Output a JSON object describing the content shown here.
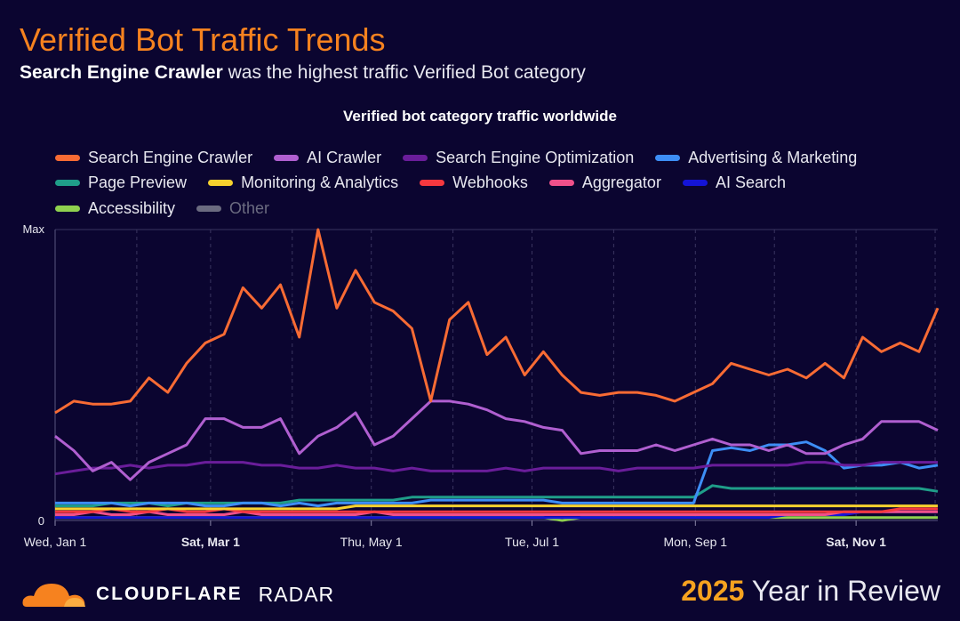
{
  "header": {
    "title": "Verified Bot Traffic Trends",
    "subtitle_bold": "Search Engine Crawler",
    "subtitle_rest": " was the highest traffic Verified Bot category"
  },
  "footer": {
    "brand": "CLOUDFLARE",
    "product": "RADAR",
    "year": "2025",
    "review": " Year in Review"
  },
  "chart_data": {
    "type": "line",
    "title": "Verified bot category traffic worldwide",
    "ylabel": "",
    "xlabel": "",
    "ylim": [
      0,
      100
    ],
    "ytick_labels": [
      "0",
      "Max"
    ],
    "xtick_labels": [
      {
        "label": "Wed, Jan 1",
        "day": 0,
        "bold": false
      },
      {
        "label": "Sat, Mar 1",
        "day": 59,
        "bold": true
      },
      {
        "label": "Thu, May 1",
        "day": 120,
        "bold": false
      },
      {
        "label": "Tue, Jul 1",
        "day": 181,
        "bold": false
      },
      {
        "label": "Mon, Sep 1",
        "day": 243,
        "bold": false
      },
      {
        "label": "Sat, Nov 1",
        "day": 304,
        "bold": true
      }
    ],
    "month_days": [
      31,
      59,
      90,
      120,
      151,
      181,
      212,
      243,
      273,
      304,
      334
    ],
    "x_range_days": [
      0,
      335
    ],
    "legend_position": "top",
    "series": [
      {
        "name": "Search Engine Crawler",
        "color": "#f86b34",
        "values": [
          37,
          41,
          40,
          40,
          41,
          49,
          44,
          54,
          61,
          64,
          80,
          73,
          81,
          63,
          100,
          73,
          86,
          75,
          72,
          66,
          41,
          69,
          75,
          57,
          63,
          50,
          58,
          50,
          44,
          43,
          44,
          44,
          43,
          41,
          44,
          47,
          54,
          52,
          50,
          52,
          49,
          54,
          49,
          63,
          58,
          61,
          58,
          73
        ]
      },
      {
        "name": "AI Crawler",
        "color": "#b05fd0",
        "values": [
          29,
          24,
          17,
          20,
          14,
          20,
          23,
          26,
          35,
          35,
          32,
          32,
          35,
          23,
          29,
          32,
          37,
          26,
          29,
          35,
          41,
          41,
          40,
          38,
          35,
          34,
          32,
          31,
          23,
          24,
          24,
          24,
          26,
          24,
          26,
          28,
          26,
          26,
          24,
          26,
          23,
          23,
          26,
          28,
          34,
          34,
          34,
          31
        ]
      },
      {
        "name": "Search Engine Optimization",
        "color": "#6a1d9a",
        "values": [
          16,
          17,
          18,
          18,
          19,
          18,
          19,
          19,
          20,
          20,
          20,
          19,
          19,
          18,
          18,
          19,
          18,
          18,
          17,
          18,
          17,
          17,
          17,
          17,
          18,
          17,
          18,
          18,
          18,
          18,
          17,
          18,
          18,
          18,
          18,
          19,
          19,
          19,
          19,
          19,
          20,
          20,
          19,
          19,
          20,
          20,
          20,
          20
        ]
      },
      {
        "name": "Advertising & Marketing",
        "color": "#3d8ef5",
        "values": [
          6,
          6,
          6,
          6,
          5,
          6,
          6,
          6,
          5,
          5,
          6,
          6,
          5,
          6,
          5,
          6,
          6,
          6,
          6,
          6,
          7,
          7,
          7,
          7,
          7,
          7,
          7,
          6,
          6,
          6,
          6,
          6,
          6,
          6,
          6,
          24,
          25,
          24,
          26,
          26,
          27,
          24,
          18,
          19,
          19,
          20,
          18,
          19
        ]
      },
      {
        "name": "Page Preview",
        "color": "#1f9e89",
        "values": [
          5,
          5,
          5,
          6,
          6,
          6,
          5,
          6,
          6,
          6,
          6,
          6,
          6,
          7,
          7,
          7,
          7,
          7,
          7,
          8,
          8,
          8,
          8,
          8,
          8,
          8,
          8,
          8,
          8,
          8,
          8,
          8,
          8,
          8,
          8,
          12,
          11,
          11,
          11,
          11,
          11,
          11,
          11,
          11,
          11,
          11,
          11,
          10
        ]
      },
      {
        "name": "Monitoring & Analytics",
        "color": "#f7d12e",
        "values": [
          4,
          4,
          4,
          4,
          4,
          4,
          4,
          4,
          4,
          4,
          4,
          4,
          4,
          4,
          4,
          4,
          5,
          5,
          5,
          5,
          5,
          5,
          5,
          5,
          5,
          5,
          5,
          5,
          5,
          5,
          5,
          5,
          5,
          5,
          5,
          5,
          5,
          5,
          5,
          5,
          5,
          5,
          5,
          5,
          5,
          5,
          5,
          5
        ]
      },
      {
        "name": "Webhooks",
        "color": "#f5383f",
        "values": [
          3,
          3,
          3,
          4,
          3,
          3,
          4,
          3,
          3,
          4,
          3,
          3,
          3,
          3,
          3,
          3,
          3,
          3,
          3,
          3,
          3,
          3,
          3,
          3,
          3,
          3,
          3,
          3,
          3,
          3,
          3,
          3,
          3,
          3,
          3,
          3,
          3,
          3,
          3,
          3,
          3,
          3,
          3,
          3,
          3,
          4,
          4,
          4
        ]
      },
      {
        "name": "Aggregator",
        "color": "#f0508a",
        "values": [
          2,
          2,
          3,
          2,
          2,
          3,
          2,
          2,
          2,
          2,
          3,
          2,
          2,
          2,
          2,
          2,
          2,
          3,
          2,
          2,
          2,
          2,
          2,
          2,
          2,
          2,
          2,
          2,
          2,
          2,
          2,
          2,
          2,
          2,
          2,
          2,
          2,
          2,
          2,
          2,
          2,
          2,
          3,
          3,
          3,
          3,
          3,
          3
        ]
      },
      {
        "name": "AI Search",
        "color": "#1414d6",
        "values": [
          1,
          1,
          1,
          1,
          1,
          1,
          1,
          1,
          1,
          1,
          1,
          1,
          1,
          1,
          1,
          1,
          1,
          1,
          1,
          1,
          1,
          1,
          1,
          1,
          1,
          1,
          1,
          1,
          1,
          1,
          1,
          1,
          1,
          1,
          1,
          1,
          1,
          1,
          1,
          2,
          2,
          2,
          2,
          3,
          3,
          3,
          3,
          3
        ]
      },
      {
        "name": "Accessibility",
        "color": "#8fd14f",
        "values": [
          1,
          1,
          1,
          1,
          1,
          1,
          1,
          1,
          1,
          1,
          1,
          1,
          1,
          1,
          1,
          1,
          1,
          1,
          1,
          1,
          1,
          1,
          1,
          1,
          1,
          1,
          1,
          0,
          1,
          1,
          1,
          1,
          1,
          1,
          1,
          1,
          1,
          1,
          1,
          1,
          1,
          1,
          1,
          1,
          1,
          1,
          1,
          1
        ]
      },
      {
        "name": "Other",
        "color": "#6b6b80",
        "hidden": true,
        "values": []
      }
    ]
  }
}
